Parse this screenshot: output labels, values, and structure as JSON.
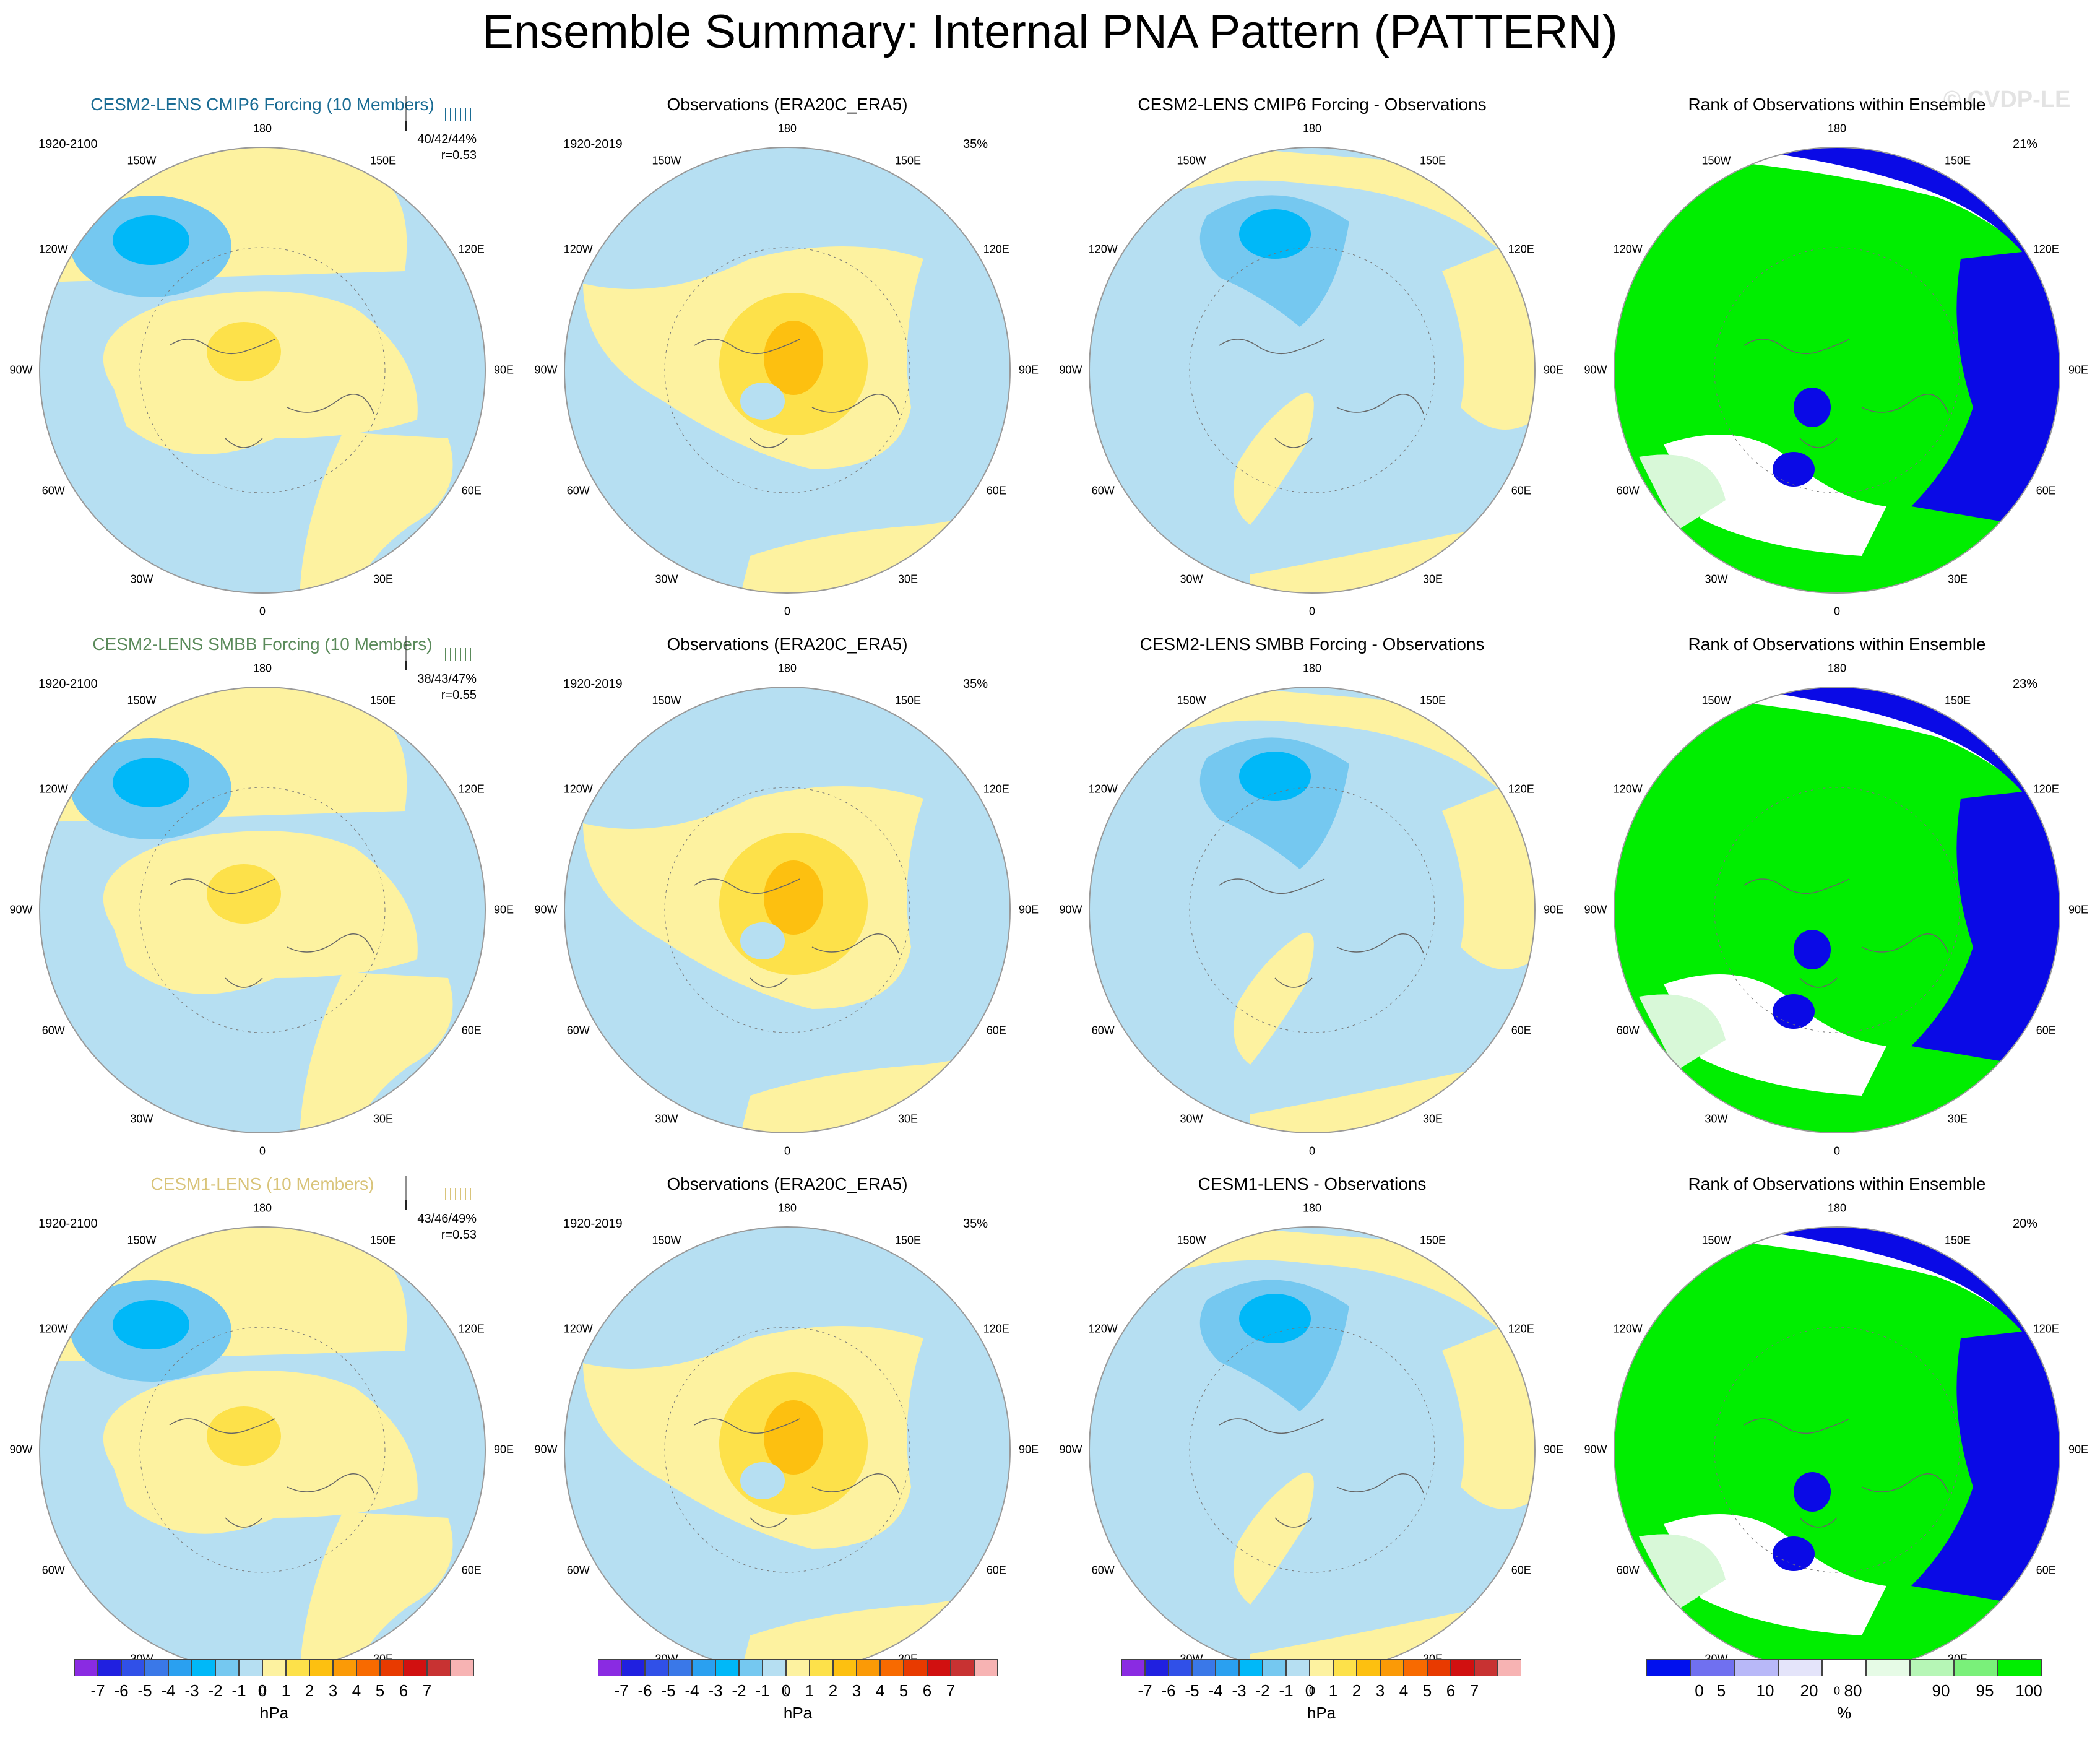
{
  "title": "Ensemble Summary: Internal PNA Pattern (PATTERN)",
  "watermark": "© CVDP-LE",
  "lon_labels": {
    "n": "180",
    "nw": "150W",
    "ne": "150E",
    "wnw": "120W",
    "ene": "120E",
    "w": "90W",
    "e": "90E",
    "wsw": "60W",
    "ese": "60E",
    "sw": "30W",
    "se": "30E",
    "s": "0"
  },
  "colors": {
    "hpa_bar": [
      "#8a2be2",
      "#2020e0",
      "#3050e8",
      "#3a78e8",
      "#2aa0f0",
      "#00b8f8",
      "#75c8f0",
      "#b6dff2",
      "#fdf2a0",
      "#fde14a",
      "#fdc010",
      "#fb9a06",
      "#f86a00",
      "#e83a00",
      "#d11010",
      "#c83232",
      "#f7b3b3"
    ],
    "rank_bar": [
      "#0010ee",
      "#7070f0",
      "#b8b8f8",
      "#e4e4fa",
      "#ffffff",
      "#e6fbe6",
      "#b6f6b6",
      "#7af07a",
      "#00ee00"
    ],
    "rank_green": "#00ee00",
    "rank_blue": "#0a0ae6",
    "rank_white": "#ffffff",
    "rank_lightgreen": "#d8f8d8"
  },
  "rows": [
    {
      "model": {
        "title": "CESM2-LENS CMIP6 Forcing (10 Members)",
        "title_color": "#1a6c94",
        "period": "1920-2100",
        "stats": "40/42/44%",
        "r": "r=0.53"
      },
      "obs": {
        "title": "Observations (ERA20C_ERA5)",
        "period": "1920-2019",
        "pct": "35%"
      },
      "diff": {
        "title": "CESM2-LENS CMIP6 Forcing - Observations"
      },
      "rank": {
        "title": "Rank of Observations within Ensemble",
        "pct": "21%"
      }
    },
    {
      "model": {
        "title": "CESM2-LENS SMBB Forcing (10 Members)",
        "title_color": "#5a8a5a",
        "period": "1920-2100",
        "stats": "38/43/47%",
        "r": "r=0.55"
      },
      "obs": {
        "title": "Observations (ERA20C_ERA5)",
        "period": "1920-2019",
        "pct": "35%"
      },
      "diff": {
        "title": "CESM2-LENS SMBB Forcing - Observations"
      },
      "rank": {
        "title": "Rank of Observations within Ensemble",
        "pct": "23%"
      }
    },
    {
      "model": {
        "title": "CESM1-LENS (10 Members)",
        "title_color": "#d9c47a",
        "period": "1920-2100",
        "stats": "43/46/49%",
        "r": "r=0.53"
      },
      "obs": {
        "title": "Observations (ERA20C_ERA5)",
        "period": "1920-2019",
        "pct": "35%"
      },
      "diff": {
        "title": "CESM1-LENS - Observations"
      },
      "rank": {
        "title": "Rank of Observations within Ensemble",
        "pct": "20%"
      }
    }
  ],
  "colorbars": {
    "hpa_ticks": [
      "-7",
      "-6",
      "-5",
      "-4",
      "-3",
      "-2",
      "-1",
      "0",
      "1",
      "2",
      "3",
      "4",
      "5",
      "6",
      "7"
    ],
    "hpa_units": "hPa",
    "rank_ticks": [
      "0",
      "5",
      "10",
      "20",
      "80",
      "90",
      "95",
      "100"
    ],
    "rank_units": "%"
  }
}
